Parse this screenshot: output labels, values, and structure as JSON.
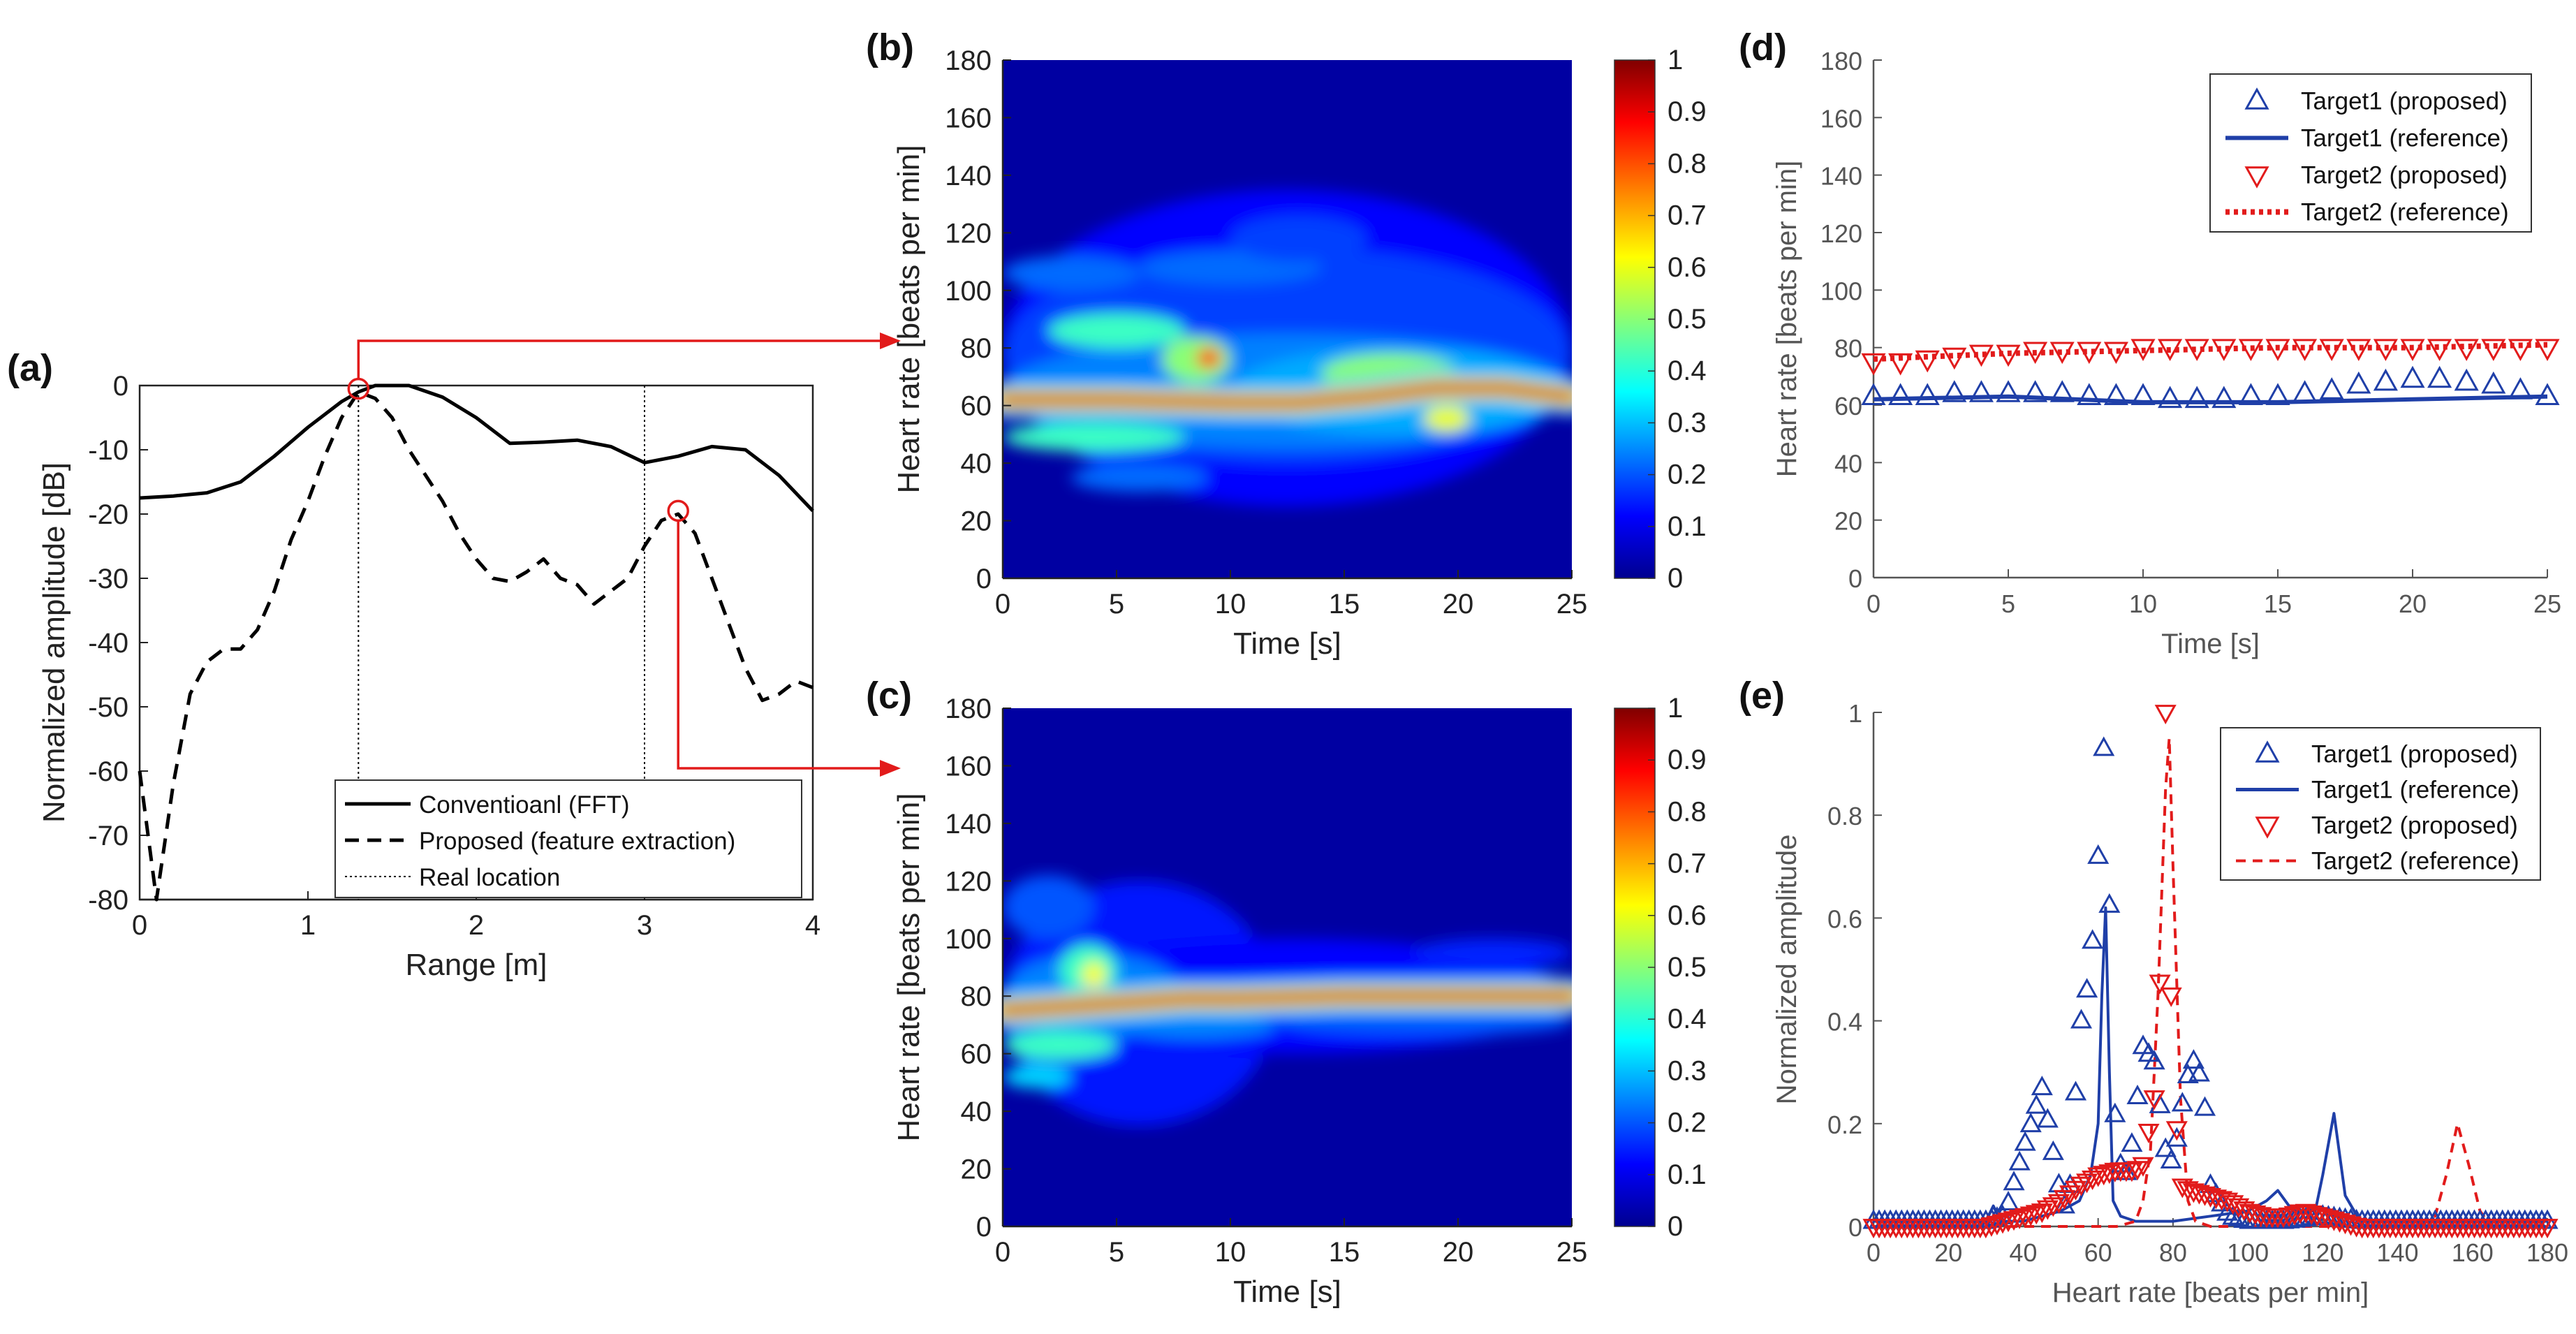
{
  "chart_data": [
    {
      "panel": "(a)",
      "type": "line",
      "title": "",
      "xlabel": "Range [m]",
      "ylabel": "Normalized amplitude [dB]",
      "xlim": [
        0,
        4
      ],
      "ylim": [
        -80,
        0
      ],
      "xticks": [
        "0",
        "1",
        "2",
        "3",
        "4"
      ],
      "yticks": [
        "0",
        "-10",
        "-20",
        "-30",
        "-40",
        "-50",
        "-60",
        "-70",
        "-80"
      ],
      "legend": {
        "placement": "bottom-right",
        "entries": [
          "Conventioanl (FFT)",
          "Proposed (feature extraction)",
          "Real location"
        ]
      },
      "series": [
        {
          "name": "Conventioanl (FFT)",
          "style": "solid",
          "color": "#000000",
          "x": [
            0,
            0.2,
            0.4,
            0.6,
            0.8,
            1.0,
            1.2,
            1.3,
            1.4,
            1.6,
            1.8,
            2.0,
            2.2,
            2.4,
            2.6,
            2.8,
            3.0,
            3.2,
            3.4,
            3.6,
            3.8,
            4.0
          ],
          "y": [
            -17.5,
            -17.2,
            -16.7,
            -15.0,
            -11.0,
            -6.5,
            -2.5,
            -1.0,
            0,
            0,
            -1.8,
            -5.0,
            -9.0,
            -8.8,
            -8.5,
            -9.5,
            -12.0,
            -11.0,
            -9.5,
            -10.0,
            -14.0,
            -19.5
          ]
        },
        {
          "name": "Proposed (feature extraction)",
          "style": "dashed",
          "color": "#000000",
          "x": [
            0,
            0.1,
            0.2,
            0.3,
            0.4,
            0.5,
            0.6,
            0.7,
            0.8,
            0.9,
            1.0,
            1.1,
            1.2,
            1.3,
            1.4,
            1.5,
            1.6,
            1.7,
            1.8,
            1.9,
            2.0,
            2.1,
            2.2,
            2.3,
            2.4,
            2.5,
            2.6,
            2.7,
            2.8,
            2.9,
            3.0,
            3.1,
            3.2,
            3.3,
            3.4,
            3.5,
            3.6,
            3.7,
            3.8,
            3.9,
            4.0
          ],
          "y": [
            -60,
            -80,
            -62,
            -48,
            -43,
            -41,
            -41,
            -38,
            -32,
            -24,
            -18,
            -11,
            -5,
            -1.0,
            -2,
            -5,
            -10,
            -14,
            -18,
            -23,
            -27,
            -30,
            -30.5,
            -29,
            -27,
            -30,
            -31,
            -34,
            -32,
            -30,
            -25,
            -21,
            -20,
            -23,
            -30,
            -37,
            -44,
            -49,
            -48,
            -46,
            -47
          ]
        }
      ],
      "vlines": [
        1.3,
        3.0
      ],
      "markers": [
        {
          "x": 1.3,
          "y": -0.5,
          "color": "#e21b1b"
        },
        {
          "x": 3.2,
          "y": -19.5,
          "color": "#e21b1b"
        }
      ]
    },
    {
      "panel": "(b)",
      "type": "heatmap",
      "title": "",
      "xlabel": "Time [s]",
      "ylabel": "Heart rate [beats per min]",
      "xlim": [
        0,
        25
      ],
      "ylim": [
        0,
        180
      ],
      "xticks": [
        "0",
        "5",
        "10",
        "15",
        "20",
        "25"
      ],
      "yticks": [
        "0",
        "20",
        "40",
        "60",
        "80",
        "100",
        "120",
        "140",
        "160",
        "180"
      ],
      "colorbar_ticks": [
        "0",
        "0.1",
        "0.2",
        "0.3",
        "0.4",
        "0.5",
        "0.6",
        "0.7",
        "0.8",
        "0.9",
        "1"
      ],
      "colormap": "jet",
      "ridge": {
        "t": [
          0,
          5,
          10,
          13,
          16,
          19,
          22,
          25
        ],
        "hr": [
          62,
          62,
          61,
          61,
          63,
          66,
          66,
          63
        ]
      }
    },
    {
      "panel": "(c)",
      "type": "heatmap",
      "title": "",
      "xlabel": "Time [s]",
      "ylabel": "Heart rate [beats per min]",
      "xlim": [
        0,
        25
      ],
      "ylim": [
        0,
        180
      ],
      "xticks": [
        "0",
        "5",
        "10",
        "15",
        "20",
        "25"
      ],
      "yticks": [
        "0",
        "20",
        "40",
        "60",
        "80",
        "100",
        "120",
        "140",
        "160",
        "180"
      ],
      "colorbar_ticks": [
        "0",
        "0.1",
        "0.2",
        "0.3",
        "0.4",
        "0.5",
        "0.6",
        "0.7",
        "0.8",
        "0.9",
        "1"
      ],
      "colormap": "jet",
      "ridge": {
        "t": [
          0,
          2,
          4,
          6,
          8,
          10,
          15,
          20,
          25
        ],
        "hr": [
          75,
          76,
          77,
          78,
          79,
          79,
          80,
          80,
          80
        ]
      }
    },
    {
      "panel": "(d)",
      "type": "line",
      "title": "",
      "xlabel": "Time [s]",
      "ylabel": "Heart rate [beats per min]",
      "xlim": [
        0,
        25
      ],
      "ylim": [
        0,
        180
      ],
      "xticks": [
        "0",
        "5",
        "10",
        "15",
        "20",
        "25"
      ],
      "yticks": [
        "0",
        "20",
        "40",
        "60",
        "80",
        "100",
        "120",
        "140",
        "160",
        "180"
      ],
      "legend": {
        "placement": "top-right",
        "entries": [
          "Target1 (proposed)",
          "Target1 (reference)",
          "Target2 (proposed)",
          "Target2 (reference)"
        ]
      },
      "series": [
        {
          "name": "Target1 (proposed)",
          "marker": "triangle-up",
          "color": "#1f3fa8",
          "x": [
            0,
            1,
            2,
            3,
            4,
            5,
            6,
            7,
            8,
            9,
            10,
            11,
            12,
            13,
            14,
            15,
            16,
            17,
            18,
            19,
            20,
            21,
            22,
            23,
            24,
            25
          ],
          "y": [
            63,
            63,
            63,
            64,
            64,
            64,
            64,
            64,
            63,
            63,
            63,
            62,
            62,
            62,
            63,
            63,
            64,
            65,
            67,
            68,
            69,
            69,
            68,
            67,
            65,
            63
          ]
        },
        {
          "name": "Target1 (reference)",
          "style": "solid",
          "color": "#1f3fa8",
          "x": [
            0,
            5,
            10,
            15,
            20,
            25
          ],
          "y": [
            62,
            63,
            61,
            61,
            62,
            63
          ]
        },
        {
          "name": "Target2 (proposed)",
          "marker": "triangle-down",
          "color": "#e21b1b",
          "x": [
            0,
            1,
            2,
            3,
            4,
            5,
            6,
            7,
            8,
            9,
            10,
            11,
            12,
            13,
            14,
            15,
            16,
            17,
            18,
            19,
            20,
            21,
            22,
            23,
            24,
            25
          ],
          "y": [
            75,
            75,
            76,
            77,
            78,
            78,
            79,
            79,
            79,
            79,
            80,
            80,
            80,
            80,
            80,
            80,
            80,
            80,
            80,
            80,
            80,
            80,
            80,
            80,
            80,
            80
          ]
        },
        {
          "name": "Target2 (reference)",
          "style": "dotted",
          "color": "#e21b1b",
          "x": [
            0,
            5,
            10,
            15,
            20,
            25
          ],
          "y": [
            76,
            78,
            79,
            80,
            80,
            81
          ]
        }
      ]
    },
    {
      "panel": "(e)",
      "type": "line",
      "title": "",
      "xlabel": "Heart rate [beats per min]",
      "ylabel": "Normalized amplitude",
      "xlim": [
        0,
        180
      ],
      "ylim": [
        0,
        1
      ],
      "xticks": [
        "0",
        "20",
        "40",
        "60",
        "80",
        "100",
        "120",
        "140",
        "160",
        "180"
      ],
      "yticks": [
        "0",
        "0.2",
        "0.4",
        "0.6",
        "0.8",
        "1"
      ],
      "legend": {
        "placement": "top-right",
        "entries": [
          "Target1 (proposed)",
          "Target1 (reference)",
          "Target2 (proposed)",
          "Target2 (reference)"
        ]
      },
      "series": [
        {
          "name": "Target1 (proposed)",
          "marker": "triangle-up",
          "color": "#1f3fa8",
          "x": [
            0,
            10,
            20,
            30,
            35,
            40,
            45,
            50,
            52,
            55,
            58,
            60,
            62,
            64,
            66,
            68,
            70,
            72,
            75,
            78,
            80,
            82,
            85,
            88,
            90,
            95,
            100,
            110,
            120,
            130,
            140,
            150,
            160,
            170,
            180
          ],
          "y": [
            0.01,
            0.01,
            0.01,
            0.01,
            0.02,
            0.15,
            0.27,
            0.06,
            0.02,
            0.38,
            0.5,
            0.72,
            1.0,
            0.25,
            0.12,
            0.1,
            0.22,
            0.35,
            0.32,
            0.15,
            0.12,
            0.22,
            0.33,
            0.28,
            0.08,
            0.02,
            0.01,
            0.01,
            0.02,
            0.01,
            0.01,
            0.01,
            0.01,
            0.01,
            0.01
          ]
        },
        {
          "name": "Target1 (reference)",
          "style": "solid",
          "color": "#1f3fa8",
          "x": [
            0,
            10,
            20,
            30,
            32,
            34,
            40,
            45,
            50,
            55,
            58,
            60,
            61,
            62,
            63,
            64,
            66,
            70,
            80,
            90,
            100,
            105,
            108,
            112,
            118,
            120,
            123,
            126,
            130,
            140,
            150,
            160,
            170,
            180
          ],
          "y": [
            0.01,
            0.01,
            0.01,
            0.01,
            0.04,
            0.01,
            0.01,
            0.02,
            0.03,
            0.05,
            0.1,
            0.2,
            0.45,
            0.62,
            0.3,
            0.05,
            0.02,
            0.01,
            0.01,
            0.02,
            0.03,
            0.05,
            0.07,
            0.03,
            0.03,
            0.1,
            0.22,
            0.06,
            0.01,
            0.01,
            0.01,
            0.01,
            0.01,
            0.01
          ]
        },
        {
          "name": "Target2 (proposed)",
          "marker": "triangle-down",
          "color": "#e21b1b",
          "x": [
            0,
            10,
            20,
            30,
            40,
            45,
            50,
            55,
            60,
            65,
            70,
            72,
            75,
            77,
            78,
            79,
            80,
            82,
            85,
            90,
            95,
            100,
            105,
            110,
            115,
            120,
            125,
            130,
            140,
            150,
            160,
            170,
            180
          ],
          "y": [
            0.0,
            0.0,
            0.0,
            0.0,
            0.02,
            0.03,
            0.05,
            0.08,
            0.1,
            0.11,
            0.11,
            0.12,
            0.25,
            0.55,
            1.0,
            0.6,
            0.3,
            0.08,
            0.07,
            0.06,
            0.05,
            0.03,
            0.02,
            0.02,
            0.03,
            0.02,
            0.01,
            0.0,
            0.0,
            0.0,
            0.0,
            0.0,
            0.0
          ]
        },
        {
          "name": "Target2 (reference)",
          "style": "dashed",
          "color": "#e21b1b",
          "x": [
            0,
            10,
            20,
            30,
            40,
            50,
            60,
            65,
            70,
            72,
            74,
            76,
            78,
            79,
            80,
            82,
            84,
            86,
            90,
            100,
            110,
            120,
            130,
            140,
            145,
            150,
            153,
            156,
            159,
            162,
            165,
            170,
            180
          ],
          "y": [
            0.0,
            0.0,
            0.0,
            0.0,
            0.0,
            0.0,
            0.0,
            0.0,
            0.01,
            0.05,
            0.15,
            0.45,
            0.85,
            0.95,
            0.7,
            0.25,
            0.05,
            0.01,
            0.0,
            0.0,
            0.0,
            0.0,
            0.0,
            0.0,
            0.0,
            0.02,
            0.1,
            0.2,
            0.12,
            0.03,
            0.0,
            0.0,
            0.0
          ]
        }
      ]
    }
  ]
}
